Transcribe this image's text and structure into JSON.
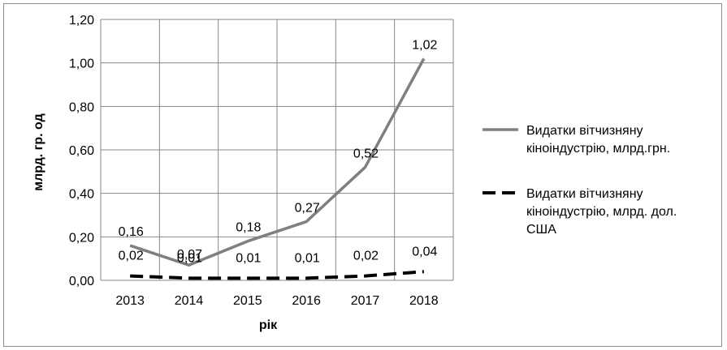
{
  "chart_data": {
    "type": "line",
    "categories": [
      "2013",
      "2014",
      "2015",
      "2016",
      "2017",
      "2018"
    ],
    "series": [
      {
        "name": "Видатки вітчизняну кіноіндустрію, млрд.грн.",
        "legend_lines": [
          "Видатки вітчизняну",
          "кіноіндустрію, млрд.грн."
        ],
        "values": [
          0.16,
          0.07,
          0.18,
          0.27,
          0.52,
          1.02
        ],
        "labels": [
          "0,16",
          "0,07",
          "0,18",
          "0,27",
          "0,52",
          "1,02"
        ],
        "color": "#7f7f7f",
        "style": "solid"
      },
      {
        "name": "Видатки вітчизняну кіноіндустрію, млрд. дол. США",
        "legend_lines": [
          "Видатки вітчизняну",
          "кіноіндустрію, млрд. дол.",
          "США"
        ],
        "values": [
          0.02,
          0.01,
          0.01,
          0.01,
          0.02,
          0.04
        ],
        "labels": [
          "0,02",
          "0,01",
          "0,01",
          "0,01",
          "0,02",
          "0,04"
        ],
        "color": "#000000",
        "style": "dashed"
      }
    ],
    "y_ticks": [
      "0,00",
      "0,20",
      "0,40",
      "0,60",
      "0,80",
      "1,00",
      "1,20"
    ],
    "y_tick_values": [
      0,
      0.2,
      0.4,
      0.6,
      0.8,
      1.0,
      1.2
    ],
    "xlabel": "рік",
    "ylabel": "млрд. гр. од",
    "ylim": [
      0,
      1.2
    ],
    "grid": true,
    "legend_position": "right"
  }
}
